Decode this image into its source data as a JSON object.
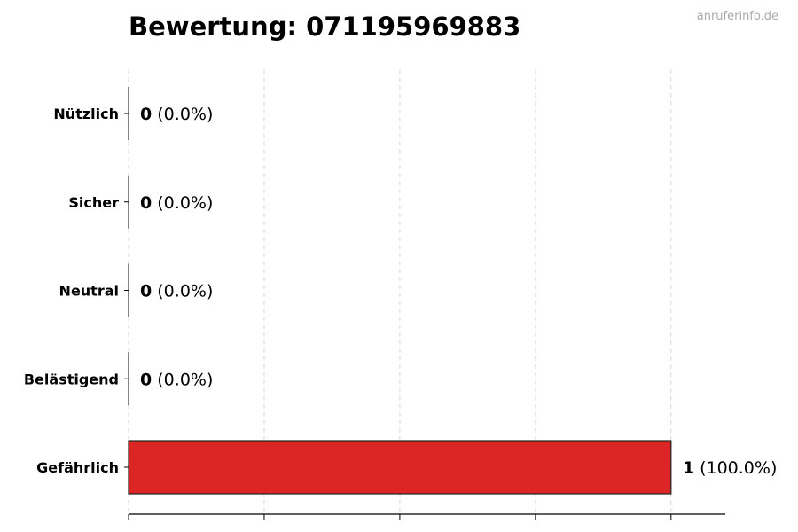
{
  "watermark": "anruferinfo.de",
  "chart_data": {
    "type": "bar",
    "orientation": "horizontal",
    "title": "Bewertung: 071195969883",
    "categories": [
      "Nützlich",
      "Sicher",
      "Neutral",
      "Belästigend",
      "Gefährlich"
    ],
    "values": [
      0,
      0,
      0,
      0,
      1
    ],
    "labels": [
      "(0.0%)",
      "(0.0%)",
      "(0.0%)",
      "(0.0%)",
      "(100.0%)"
    ],
    "colors": [
      "#dc2626",
      "#dc2626",
      "#dc2626",
      "#dc2626",
      "#dc2626"
    ],
    "xlim": [
      0,
      1.1
    ],
    "xticks": [
      0,
      0.25,
      0.5,
      0.75,
      1.0
    ],
    "xtick_labels_shown": false,
    "grid": "x-dashed",
    "xlabel": "",
    "ylabel": ""
  }
}
